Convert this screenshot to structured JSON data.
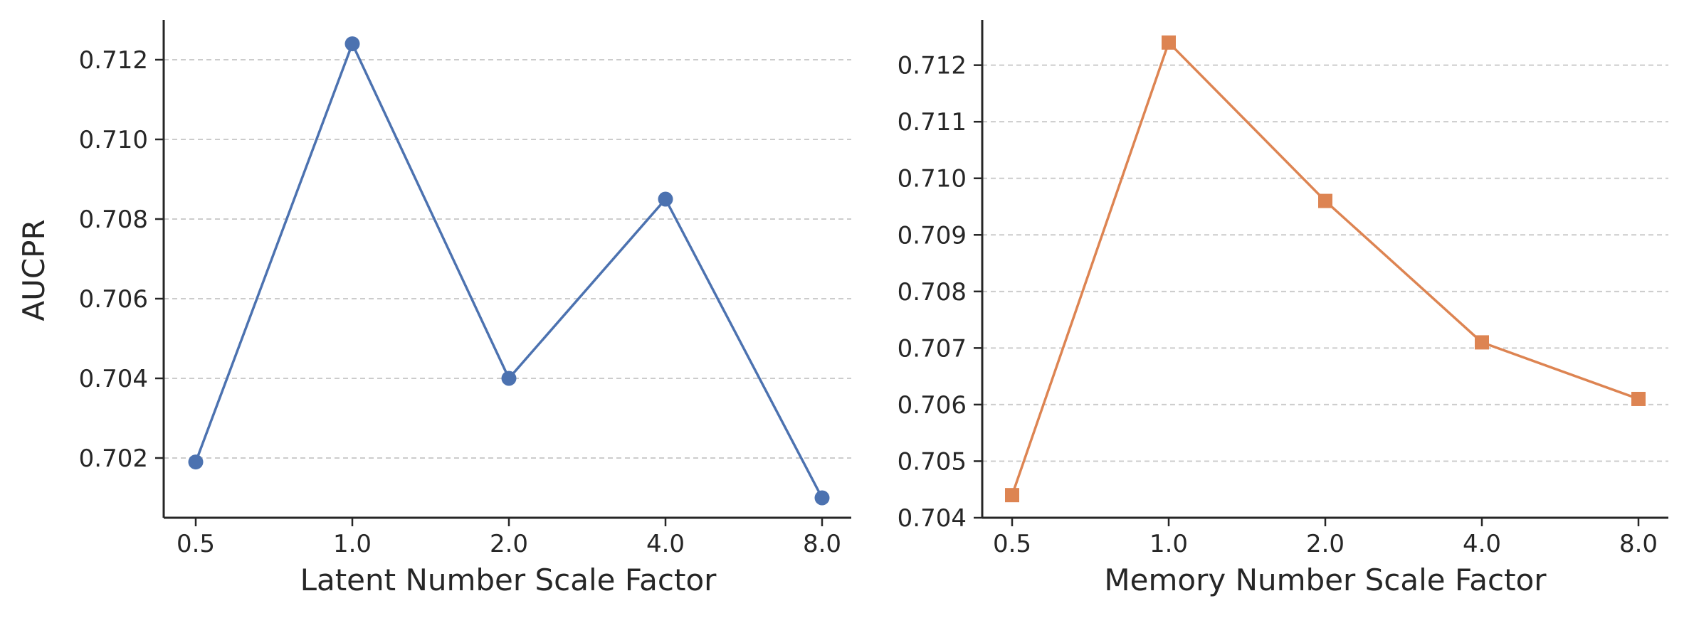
{
  "chart_data": [
    {
      "type": "line",
      "categories": [
        "0.5",
        "1.0",
        "2.0",
        "4.0",
        "8.0"
      ],
      "series": [
        {
          "values": [
            0.7019,
            0.7124,
            0.704,
            0.7085,
            0.701
          ],
          "color": "#4c72b0",
          "marker": "circle"
        }
      ],
      "xlabel": "Latent Number Scale Factor",
      "ylabel": "AUCPR",
      "yticks": [
        "0.702",
        "0.704",
        "0.706",
        "0.708",
        "0.710",
        "0.712"
      ],
      "ylim": [
        0.7005,
        0.713
      ],
      "grid": "horizontal-dashed"
    },
    {
      "type": "line",
      "categories": [
        "0.5",
        "1.0",
        "2.0",
        "4.0",
        "8.0"
      ],
      "series": [
        {
          "values": [
            0.7044,
            0.7124,
            0.7096,
            0.7071,
            0.7061
          ],
          "color": "#dd8452",
          "marker": "square"
        }
      ],
      "xlabel": "Memory Number Scale Factor",
      "ylabel": "",
      "yticks": [
        "0.704",
        "0.705",
        "0.706",
        "0.707",
        "0.708",
        "0.709",
        "0.710",
        "0.711",
        "0.712"
      ],
      "ylim": [
        0.704,
        0.7128
      ],
      "grid": "horizontal-dashed"
    }
  ]
}
